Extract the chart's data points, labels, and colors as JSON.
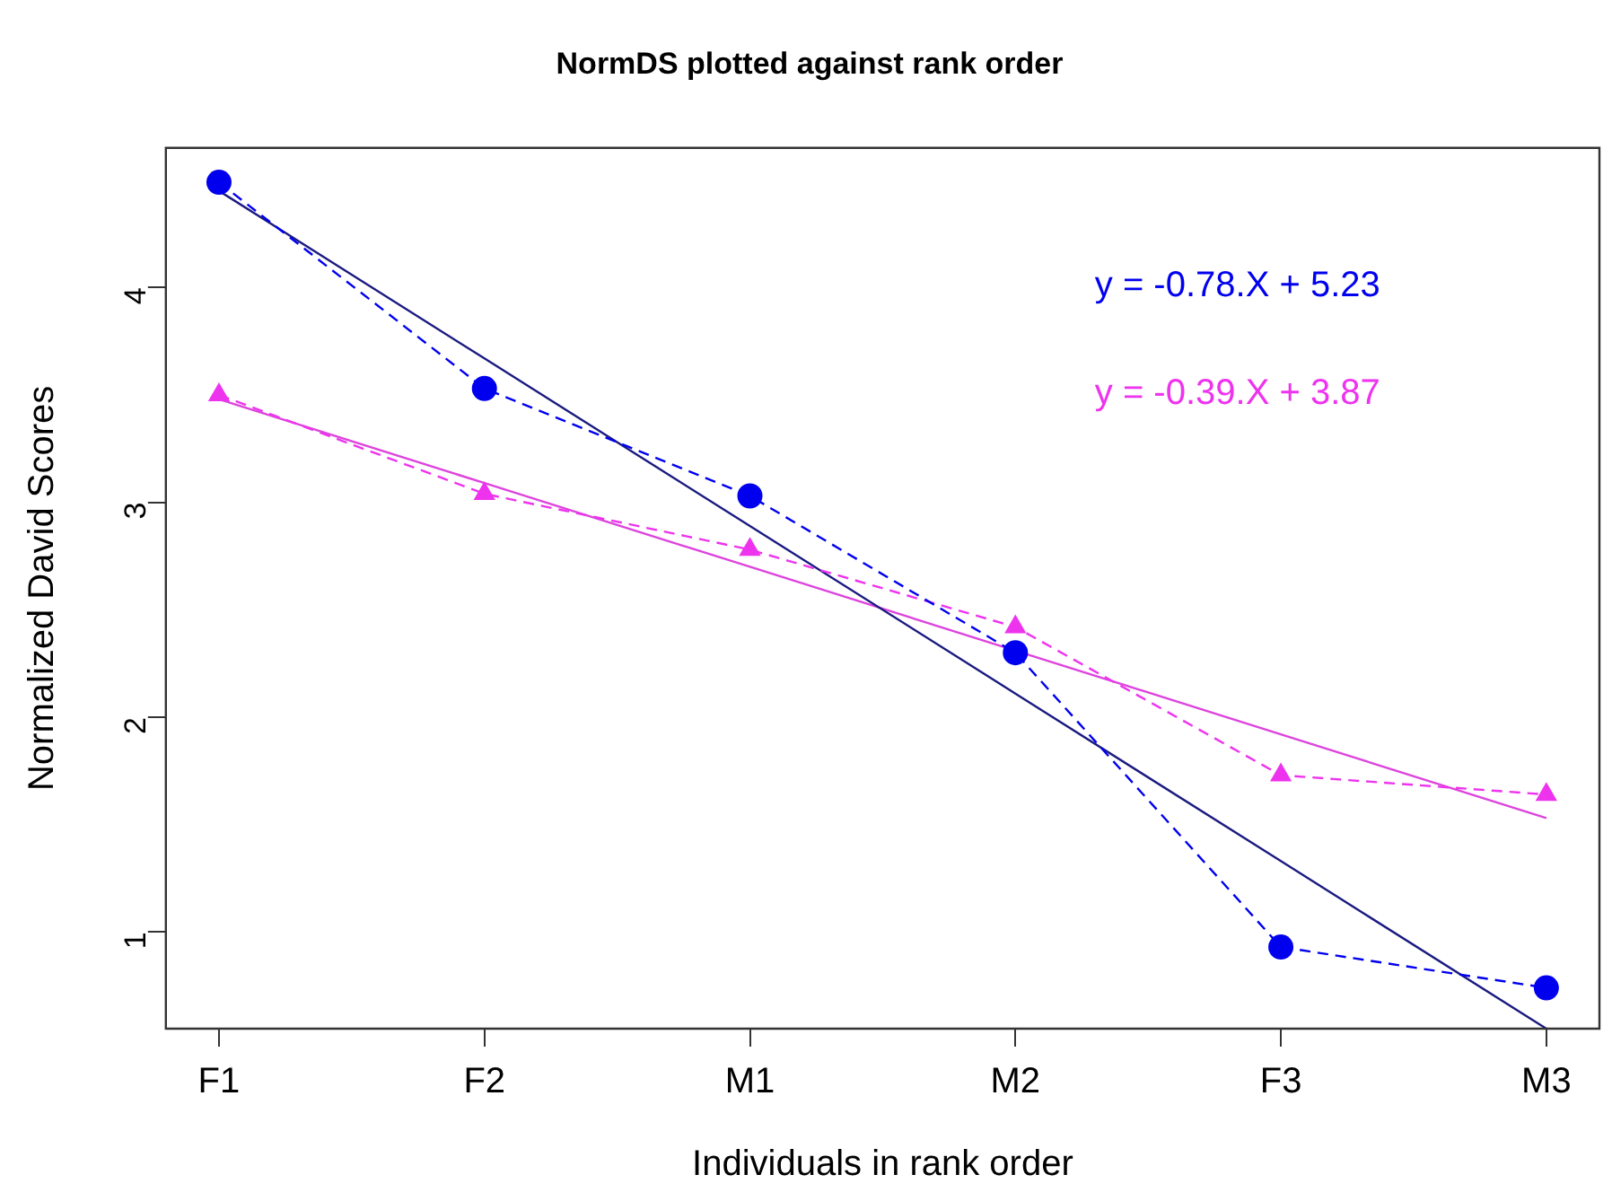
{
  "chart_data": {
    "type": "line",
    "title": "NormDS plotted against rank order",
    "xlabel": "Individuals in rank order",
    "ylabel": "Normalized David Scores",
    "categories": [
      "F1",
      "F2",
      "M1",
      "M2",
      "F3",
      "M3"
    ],
    "ylim": [
      0.55,
      4.65
    ],
    "yticks": [
      1,
      2,
      3,
      4
    ],
    "series": [
      {
        "color": "#0000ee",
        "values": [
          4.49,
          3.53,
          3.03,
          2.3,
          0.93,
          0.74
        ],
        "marker": "circle",
        "line_style": "dashed"
      },
      {
        "color": "#ee33ee",
        "values": [
          3.5,
          3.04,
          2.78,
          2.42,
          1.73,
          1.64
        ],
        "marker": "triangle",
        "line_style": "dashed"
      },
      {
        "color": "#1a1a80",
        "values": [
          4.45,
          3.67,
          2.89,
          2.11,
          1.33,
          0.55
        ],
        "marker": "none",
        "line_style": "solid"
      },
      {
        "color": "#dd44dd",
        "values": [
          3.48,
          3.09,
          2.7,
          2.31,
          1.92,
          1.53
        ],
        "marker": "none",
        "line_style": "solid"
      }
    ],
    "annotations": [
      "y = -0.78.X + 5.23",
      "y = -0.39.X + 3.87"
    ],
    "grid": false,
    "legend": false
  }
}
